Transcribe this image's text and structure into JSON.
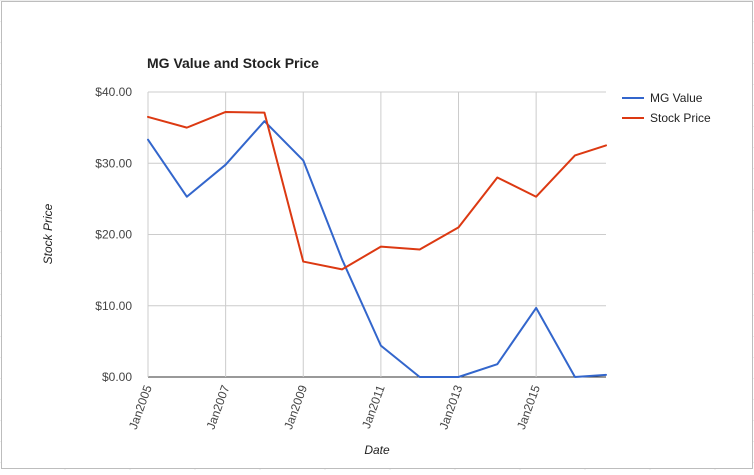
{
  "chart_data": {
    "type": "line",
    "title": "MG Value and Stock Price",
    "xlabel": "Date",
    "ylabel": "Stock Price",
    "x": [
      2005,
      2006,
      2007,
      2008,
      2009,
      2010,
      2011,
      2012,
      2013,
      2014,
      2015,
      2016,
      2016.8
    ],
    "x_range": [
      2005,
      2016.8
    ],
    "x_ticks": [
      {
        "value": 2005,
        "label": "Jan2005"
      },
      {
        "value": 2007,
        "label": "Jan2007"
      },
      {
        "value": 2009,
        "label": "Jan2009"
      },
      {
        "value": 2011,
        "label": "Jan2011"
      },
      {
        "value": 2013,
        "label": "Jan2013"
      },
      {
        "value": 2015,
        "label": "Jan2015"
      }
    ],
    "ylim": [
      0,
      40
    ],
    "y_ticks": [
      {
        "value": 0,
        "label": "$0.00"
      },
      {
        "value": 10,
        "label": "$10.00"
      },
      {
        "value": 20,
        "label": "$20.00"
      },
      {
        "value": 30,
        "label": "$30.00"
      },
      {
        "value": 40,
        "label": "$40.00"
      }
    ],
    "grid": true,
    "legend_position": "right",
    "series": [
      {
        "name": "MG Value",
        "color": "#3366cc",
        "values": [
          33.3,
          25.3,
          29.8,
          35.9,
          30.4,
          16.5,
          4.4,
          0.0,
          0.0,
          1.8,
          9.7,
          0.0,
          0.3
        ]
      },
      {
        "name": "Stock Price",
        "color": "#dc3912",
        "values": [
          36.5,
          35.0,
          37.2,
          37.1,
          16.2,
          15.1,
          18.3,
          17.9,
          21.0,
          28.0,
          25.3,
          31.1,
          32.5
        ]
      }
    ]
  }
}
